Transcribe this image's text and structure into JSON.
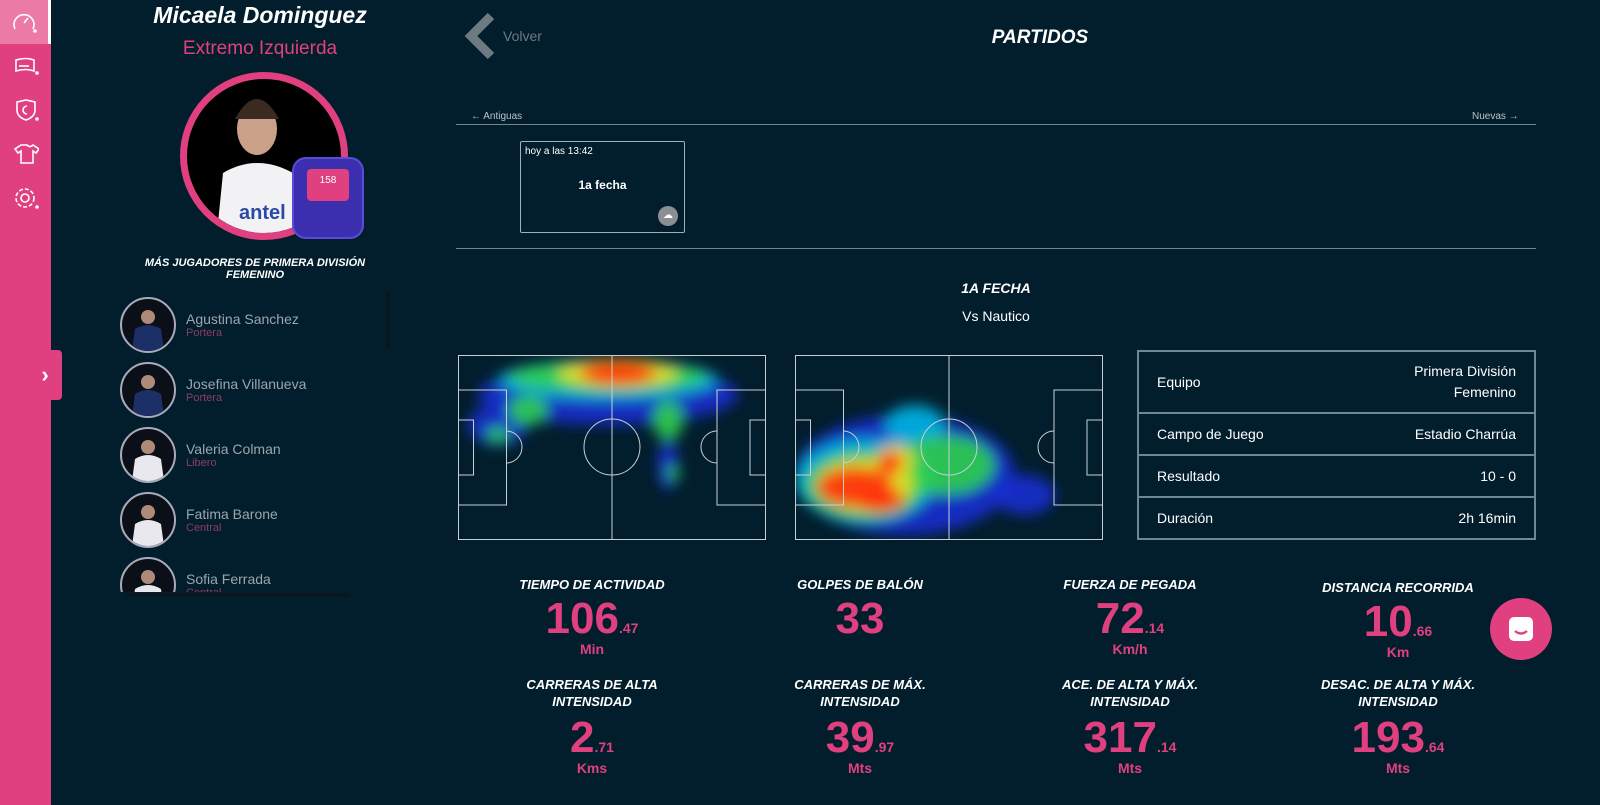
{
  "sidebar": {
    "items": [
      {
        "icon": "speedometer-icon"
      },
      {
        "icon": "field-icon"
      },
      {
        "icon": "shield-icon"
      },
      {
        "icon": "shirt-icon"
      },
      {
        "icon": "gear-icon"
      }
    ]
  },
  "player": {
    "name": "Micaela Dominguez",
    "position": "Extremo Izquierda",
    "device_number": "158"
  },
  "more_title": "MÁS JUGADORES DE PRIMERA DIVISIÓN FEMENINO",
  "players": [
    {
      "name": "Agustina Sanchez",
      "position": "Portera"
    },
    {
      "name": "Josefina Villanueva",
      "position": "Portera"
    },
    {
      "name": "Valeria Colman",
      "position": "Libero"
    },
    {
      "name": "Fatima Barone",
      "position": "Central"
    },
    {
      "name": "Sofia Ferrada",
      "position": "Central"
    }
  ],
  "header": {
    "back": "Volver",
    "title": "PARTIDOS"
  },
  "nav": {
    "older": "Antiguas",
    "newer": "Nuevas"
  },
  "match_card": {
    "time": "hoy a las 13:42",
    "name": "1a fecha"
  },
  "match": {
    "title": "1A FECHA",
    "opponent": "Vs Nautico"
  },
  "info": [
    {
      "k": "Equipo",
      "v": "Primera División Femenino"
    },
    {
      "k": "Campo de Juego",
      "v": "Estadio Charrúa"
    },
    {
      "k": "Resultado",
      "v": "10 - 0"
    },
    {
      "k": "Duración",
      "v": "2h 16min"
    }
  ],
  "stats": [
    {
      "label": "TIEMPO DE ACTIVIDAD",
      "int": "106",
      "dec": ".47",
      "unit": "Min"
    },
    {
      "label": "GOLPES DE BALÓN",
      "int": "33",
      "dec": "",
      "unit": ""
    },
    {
      "label": "FUERZA DE PEGADA",
      "int": "72",
      "dec": ".14",
      "unit": "Km/h"
    },
    {
      "label": "DISTANCIA RECORRIDA",
      "int": "10",
      "dec": ".66",
      "unit": "Km"
    },
    {
      "label": "CARRERAS DE ALTA INTENSIDAD",
      "int": "2",
      "dec": ".71",
      "unit": "Kms"
    },
    {
      "label": "CARRERAS DE MÁX. INTENSIDAD",
      "int": "39",
      "dec": ".97",
      "unit": "Mts"
    },
    {
      "label": "ACE. DE ALTA Y MÁX. INTENSIDAD",
      "int": "317",
      "dec": ".14",
      "unit": "Mts"
    },
    {
      "label": "DESAC. DE ALTA Y MÁX. INTENSIDAD",
      "int": "193",
      "dec": ".64",
      "unit": "Mts"
    }
  ],
  "colors": {
    "accent": "#e0407f",
    "background": "#021e2c"
  }
}
